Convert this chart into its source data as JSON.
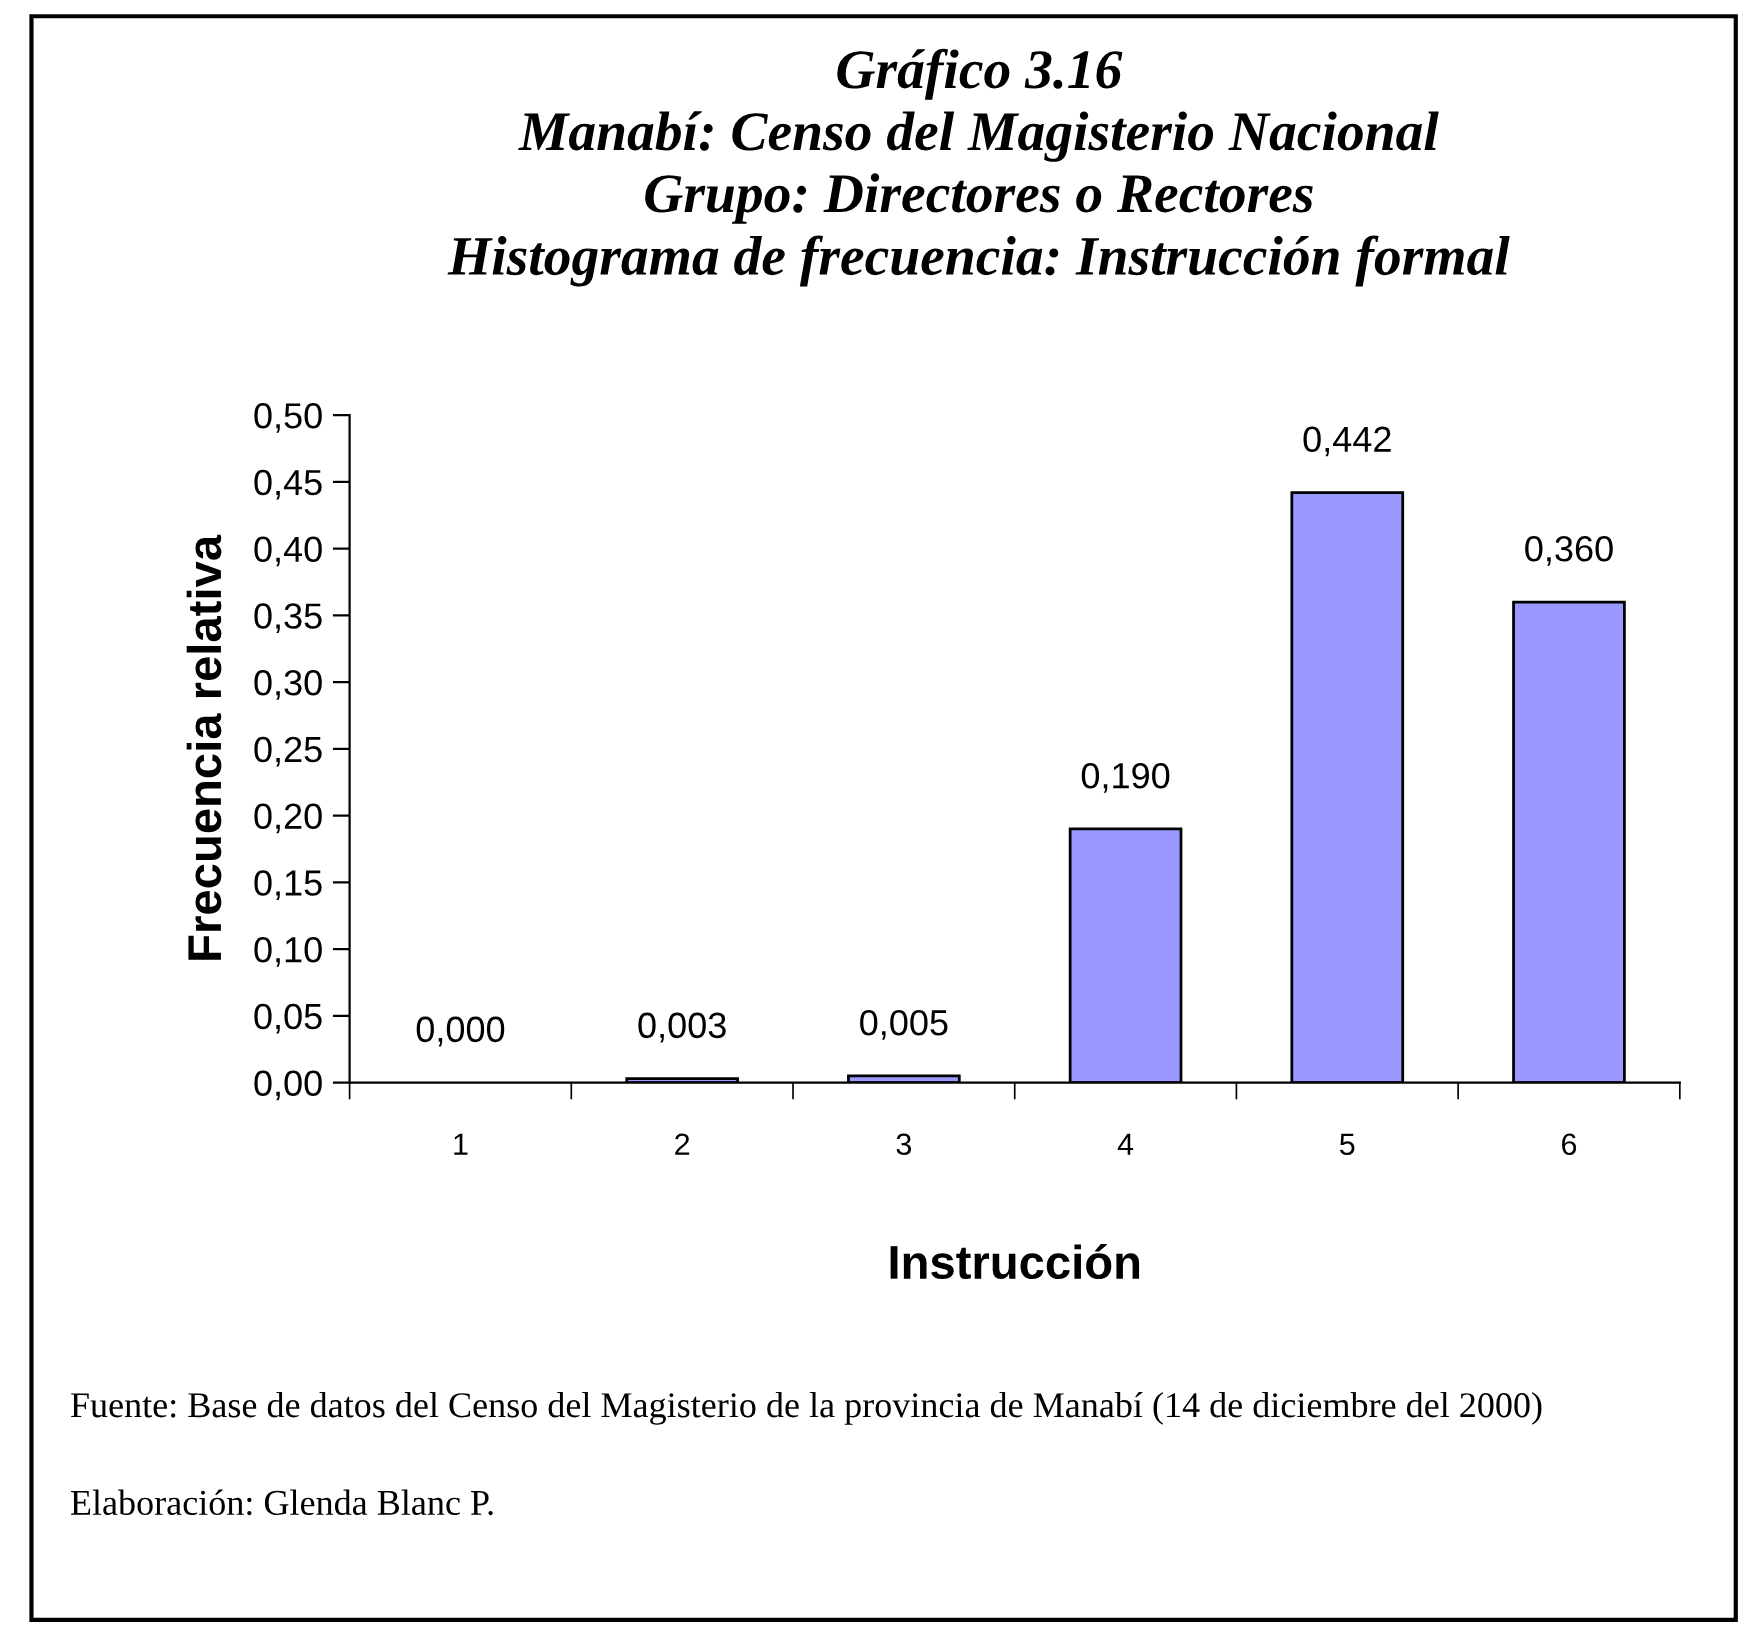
{
  "chart_data": {
    "type": "bar",
    "title": "Gráfico 3.16\nManabí: Censo del Magisterio Nacional\nGrupo: Directores o Rectores\nHistograma de frecuencia: Instrucción formal",
    "xlabel": "Instrucción",
    "ylabel": "Frecuencia relativa",
    "categories": [
      "1",
      "2",
      "3",
      "4",
      "5",
      "6"
    ],
    "values": [
      0.0,
      0.003,
      0.005,
      0.19,
      0.442,
      0.36
    ],
    "value_labels": [
      "0,000",
      "0,003",
      "0,005",
      "0,190",
      "0,442",
      "0,360"
    ],
    "color": "#9999ff",
    "ylim": [
      0,
      0.5
    ],
    "yticks": [
      {
        "value": 0,
        "label": "0,00"
      },
      {
        "value": 0.05,
        "label": "0,05"
      },
      {
        "value": 0.1,
        "label": "0,10"
      },
      {
        "value": 0.15,
        "label": "0,15"
      },
      {
        "value": 0.2,
        "label": "0,20"
      },
      {
        "value": 0.25,
        "label": "0,25"
      },
      {
        "value": 0.3,
        "label": "0,30"
      },
      {
        "value": 0.35,
        "label": "0,35"
      },
      {
        "value": 0.4,
        "label": "0,40"
      },
      {
        "value": 0.45,
        "label": "0,45"
      },
      {
        "value": 0.5,
        "label": "0,50"
      }
    ],
    "grid": false,
    "legend": false,
    "annotations": [
      "Fuente: Base de datos del Censo del Magisterio de la provincia de Manabí (14 de diciembre del 2000)",
      "Elaboración: Glenda Blanc P."
    ]
  }
}
